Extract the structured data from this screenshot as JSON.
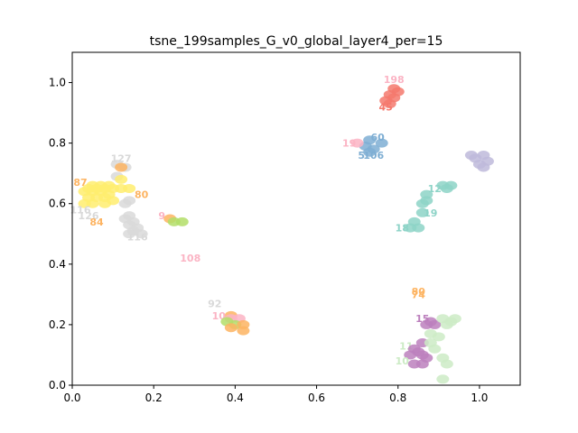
{
  "chart_data": {
    "type": "scatter",
    "title": "tsne_199samples_G_v0_global_layer4_per=15",
    "xlabel": "",
    "ylabel": "",
    "xlim": [
      0.0,
      1.1
    ],
    "ylim": [
      0.0,
      1.1
    ],
    "xticks": [
      "0.0",
      "0.2",
      "0.4",
      "0.6",
      "0.8",
      "1.0"
    ],
    "yticks": [
      "0.0",
      "0.2",
      "0.4",
      "0.6",
      "0.8",
      "1.0"
    ],
    "grid": false,
    "points": [
      {
        "x": 0.79,
        "y": 1.01,
        "label": "198",
        "color": "#fbb4c4"
      },
      {
        "x": 0.79,
        "y": 0.98,
        "label": "",
        "color": "#f4796d"
      },
      {
        "x": 0.8,
        "y": 0.97,
        "label": "",
        "color": "#f4796d"
      },
      {
        "x": 0.78,
        "y": 0.96,
        "label": "",
        "color": "#f4796d"
      },
      {
        "x": 0.79,
        "y": 0.95,
        "label": "",
        "color": "#f4796d"
      },
      {
        "x": 0.77,
        "y": 0.94,
        "label": "",
        "color": "#f4796d"
      },
      {
        "x": 0.78,
        "y": 0.93,
        "label": "",
        "color": "#f4796d"
      },
      {
        "x": 0.77,
        "y": 0.92,
        "label": "45",
        "color": "#f4796d"
      },
      {
        "x": 0.75,
        "y": 0.82,
        "label": "60",
        "color": "#7eaed3"
      },
      {
        "x": 0.73,
        "y": 0.81,
        "label": "",
        "color": "#7eaed3"
      },
      {
        "x": 0.76,
        "y": 0.8,
        "label": "",
        "color": "#7eaed3"
      },
      {
        "x": 0.72,
        "y": 0.79,
        "label": "",
        "color": "#7eaed3"
      },
      {
        "x": 0.74,
        "y": 0.78,
        "label": "",
        "color": "#7eaed3"
      },
      {
        "x": 0.73,
        "y": 0.77,
        "label": "",
        "color": "#7eaed3"
      },
      {
        "x": 0.71,
        "y": 0.76,
        "label": "5",
        "color": "#7eaed3"
      },
      {
        "x": 0.74,
        "y": 0.76,
        "label": "106",
        "color": "#7eaed3"
      },
      {
        "x": 0.68,
        "y": 0.8,
        "label": "19",
        "color": "#fbb4c4"
      },
      {
        "x": 0.7,
        "y": 0.8,
        "label": "",
        "color": "#fbb4c4"
      },
      {
        "x": 0.98,
        "y": 0.76,
        "label": "",
        "color": "#bebada"
      },
      {
        "x": 1.01,
        "y": 0.76,
        "label": "",
        "color": "#bebada"
      },
      {
        "x": 0.99,
        "y": 0.75,
        "label": "",
        "color": "#bebada"
      },
      {
        "x": 1.02,
        "y": 0.74,
        "label": "",
        "color": "#bebada"
      },
      {
        "x": 1.0,
        "y": 0.73,
        "label": "",
        "color": "#bebada"
      },
      {
        "x": 1.01,
        "y": 0.72,
        "label": "",
        "color": "#bebada"
      },
      {
        "x": 0.93,
        "y": 0.66,
        "label": "",
        "color": "#8dd3c7"
      },
      {
        "x": 0.91,
        "y": 0.66,
        "label": "",
        "color": "#8dd3c7"
      },
      {
        "x": 0.89,
        "y": 0.65,
        "label": "12",
        "color": "#8dd3c7"
      },
      {
        "x": 0.92,
        "y": 0.65,
        "label": "",
        "color": "#8dd3c7"
      },
      {
        "x": 0.87,
        "y": 0.63,
        "label": "",
        "color": "#8dd3c7"
      },
      {
        "x": 0.87,
        "y": 0.61,
        "label": "",
        "color": "#8dd3c7"
      },
      {
        "x": 0.86,
        "y": 0.6,
        "label": "",
        "color": "#8dd3c7"
      },
      {
        "x": 0.86,
        "y": 0.57,
        "label": "",
        "color": "#8dd3c7"
      },
      {
        "x": 0.88,
        "y": 0.57,
        "label": "19",
        "color": "#8dd3c7"
      },
      {
        "x": 0.84,
        "y": 0.54,
        "label": "",
        "color": "#8dd3c7"
      },
      {
        "x": 0.83,
        "y": 0.52,
        "label": "",
        "color": "#8dd3c7"
      },
      {
        "x": 0.81,
        "y": 0.52,
        "label": "18",
        "color": "#8dd3c7"
      },
      {
        "x": 0.85,
        "y": 0.52,
        "label": "",
        "color": "#8dd3c7"
      },
      {
        "x": 0.12,
        "y": 0.75,
        "label": "127",
        "color": "#d9d9d9"
      },
      {
        "x": 0.11,
        "y": 0.73,
        "label": "",
        "color": "#d9d9d9"
      },
      {
        "x": 0.13,
        "y": 0.72,
        "label": "",
        "color": "#d9d9d9"
      },
      {
        "x": 0.12,
        "y": 0.72,
        "label": "",
        "color": "#fdb462"
      },
      {
        "x": 0.11,
        "y": 0.69,
        "label": "",
        "color": "#d9d9d9"
      },
      {
        "x": 0.12,
        "y": 0.68,
        "label": "",
        "color": "#ffed6f"
      },
      {
        "x": 0.02,
        "y": 0.67,
        "label": "87",
        "color": "#fdb462"
      },
      {
        "x": 0.05,
        "y": 0.66,
        "label": "",
        "color": "#ffed6f"
      },
      {
        "x": 0.07,
        "y": 0.66,
        "label": "",
        "color": "#ffed6f"
      },
      {
        "x": 0.09,
        "y": 0.66,
        "label": "",
        "color": "#ffed6f"
      },
      {
        "x": 0.04,
        "y": 0.65,
        "label": "",
        "color": "#ffed6f"
      },
      {
        "x": 0.06,
        "y": 0.65,
        "label": "",
        "color": "#ffed6f"
      },
      {
        "x": 0.08,
        "y": 0.65,
        "label": "",
        "color": "#ffed6f"
      },
      {
        "x": 0.1,
        "y": 0.65,
        "label": "",
        "color": "#ffed6f"
      },
      {
        "x": 0.12,
        "y": 0.65,
        "label": "",
        "color": "#ffed6f"
      },
      {
        "x": 0.14,
        "y": 0.65,
        "label": "",
        "color": "#ffed6f"
      },
      {
        "x": 0.03,
        "y": 0.64,
        "label": "",
        "color": "#ffed6f"
      },
      {
        "x": 0.05,
        "y": 0.64,
        "label": "",
        "color": "#ffed6f"
      },
      {
        "x": 0.07,
        "y": 0.64,
        "label": "",
        "color": "#ffed6f"
      },
      {
        "x": 0.09,
        "y": 0.63,
        "label": "",
        "color": "#ffed6f"
      },
      {
        "x": 0.04,
        "y": 0.62,
        "label": "",
        "color": "#ffed6f"
      },
      {
        "x": 0.06,
        "y": 0.62,
        "label": "",
        "color": "#ffed6f"
      },
      {
        "x": 0.08,
        "y": 0.62,
        "label": "",
        "color": "#ffed6f"
      },
      {
        "x": 0.1,
        "y": 0.61,
        "label": "",
        "color": "#ffed6f"
      },
      {
        "x": 0.03,
        "y": 0.6,
        "label": "",
        "color": "#ffed6f"
      },
      {
        "x": 0.05,
        "y": 0.6,
        "label": "",
        "color": "#ffed6f"
      },
      {
        "x": 0.08,
        "y": 0.6,
        "label": "",
        "color": "#ffed6f"
      },
      {
        "x": 0.14,
        "y": 0.61,
        "label": "",
        "color": "#d9d9d9"
      },
      {
        "x": 0.13,
        "y": 0.6,
        "label": "",
        "color": "#d9d9d9"
      },
      {
        "x": 0.17,
        "y": 0.63,
        "label": "80",
        "color": "#fdb462"
      },
      {
        "x": 0.02,
        "y": 0.58,
        "label": "116",
        "color": "#d9d9d9"
      },
      {
        "x": 0.04,
        "y": 0.56,
        "label": "126",
        "color": "#d9d9d9"
      },
      {
        "x": 0.06,
        "y": 0.54,
        "label": "84",
        "color": "#fdb462"
      },
      {
        "x": 0.14,
        "y": 0.56,
        "label": "",
        "color": "#d9d9d9"
      },
      {
        "x": 0.13,
        "y": 0.55,
        "label": "",
        "color": "#d9d9d9"
      },
      {
        "x": 0.15,
        "y": 0.54,
        "label": "",
        "color": "#d9d9d9"
      },
      {
        "x": 0.14,
        "y": 0.53,
        "label": "",
        "color": "#d9d9d9"
      },
      {
        "x": 0.16,
        "y": 0.52,
        "label": "",
        "color": "#d9d9d9"
      },
      {
        "x": 0.15,
        "y": 0.51,
        "label": "",
        "color": "#d9d9d9"
      },
      {
        "x": 0.14,
        "y": 0.5,
        "label": "",
        "color": "#d9d9d9"
      },
      {
        "x": 0.17,
        "y": 0.5,
        "label": "",
        "color": "#d9d9d9"
      },
      {
        "x": 0.16,
        "y": 0.49,
        "label": "116",
        "color": "#d9d9d9"
      },
      {
        "x": 0.22,
        "y": 0.56,
        "label": "9",
        "color": "#fbb4c4"
      },
      {
        "x": 0.24,
        "y": 0.55,
        "label": "",
        "color": "#fdb462"
      },
      {
        "x": 0.25,
        "y": 0.54,
        "label": "",
        "color": "#b3de69"
      },
      {
        "x": 0.27,
        "y": 0.54,
        "label": "",
        "color": "#b3de69"
      },
      {
        "x": 0.29,
        "y": 0.42,
        "label": "108",
        "color": "#fbb4c4"
      },
      {
        "x": 0.35,
        "y": 0.27,
        "label": "92",
        "color": "#d9d9d9"
      },
      {
        "x": 0.39,
        "y": 0.23,
        "label": "",
        "color": "#fdb462"
      },
      {
        "x": 0.36,
        "y": 0.23,
        "label": "10",
        "color": "#fbb4c4"
      },
      {
        "x": 0.39,
        "y": 0.22,
        "label": "",
        "color": "#fbb4c4"
      },
      {
        "x": 0.41,
        "y": 0.22,
        "label": "",
        "color": "#fbb4c4"
      },
      {
        "x": 0.38,
        "y": 0.21,
        "label": "",
        "color": "#b3de69"
      },
      {
        "x": 0.4,
        "y": 0.2,
        "label": "",
        "color": "#b3de69"
      },
      {
        "x": 0.42,
        "y": 0.2,
        "label": "",
        "color": "#fdb462"
      },
      {
        "x": 0.39,
        "y": 0.19,
        "label": "",
        "color": "#fdb462"
      },
      {
        "x": 0.42,
        "y": 0.18,
        "label": "",
        "color": "#fdb462"
      },
      {
        "x": 0.85,
        "y": 0.31,
        "label": "80",
        "color": "#fdb462"
      },
      {
        "x": 0.85,
        "y": 0.3,
        "label": "74",
        "color": "#fdb462"
      },
      {
        "x": 0.86,
        "y": 0.22,
        "label": "15",
        "color": "#bc80bd"
      },
      {
        "x": 0.88,
        "y": 0.21,
        "label": "",
        "color": "#bc80bd"
      },
      {
        "x": 0.87,
        "y": 0.2,
        "label": "",
        "color": "#bc80bd"
      },
      {
        "x": 0.89,
        "y": 0.2,
        "label": "",
        "color": "#bc80bd"
      },
      {
        "x": 0.91,
        "y": 0.22,
        "label": "",
        "color": "#ccebc5"
      },
      {
        "x": 0.93,
        "y": 0.21,
        "label": "",
        "color": "#ccebc5"
      },
      {
        "x": 0.92,
        "y": 0.2,
        "label": "",
        "color": "#ccebc5"
      },
      {
        "x": 0.94,
        "y": 0.22,
        "label": "",
        "color": "#ccebc5"
      },
      {
        "x": 0.88,
        "y": 0.17,
        "label": "",
        "color": "#ccebc5"
      },
      {
        "x": 0.9,
        "y": 0.16,
        "label": "",
        "color": "#ccebc5"
      },
      {
        "x": 0.86,
        "y": 0.14,
        "label": "",
        "color": "#bc80bd"
      },
      {
        "x": 0.88,
        "y": 0.14,
        "label": "",
        "color": "#ccebc5"
      },
      {
        "x": 0.82,
        "y": 0.13,
        "label": "11",
        "color": "#ccebc5"
      },
      {
        "x": 0.84,
        "y": 0.12,
        "label": "",
        "color": "#bc80bd"
      },
      {
        "x": 0.85,
        "y": 0.11,
        "label": "",
        "color": "#bc80bd"
      },
      {
        "x": 0.89,
        "y": 0.12,
        "label": "",
        "color": "#ccebc5"
      },
      {
        "x": 0.83,
        "y": 0.1,
        "label": "",
        "color": "#bc80bd"
      },
      {
        "x": 0.86,
        "y": 0.1,
        "label": "",
        "color": "#bc80bd"
      },
      {
        "x": 0.87,
        "y": 0.09,
        "label": "",
        "color": "#bc80bd"
      },
      {
        "x": 0.91,
        "y": 0.09,
        "label": "",
        "color": "#ccebc5"
      },
      {
        "x": 0.81,
        "y": 0.08,
        "label": "10",
        "color": "#ccebc5"
      },
      {
        "x": 0.84,
        "y": 0.07,
        "label": "",
        "color": "#bc80bd"
      },
      {
        "x": 0.86,
        "y": 0.07,
        "label": "",
        "color": "#bc80bd"
      },
      {
        "x": 0.92,
        "y": 0.07,
        "label": "",
        "color": "#ccebc5"
      },
      {
        "x": 0.91,
        "y": 0.02,
        "label": "",
        "color": "#ccebc5"
      }
    ]
  }
}
